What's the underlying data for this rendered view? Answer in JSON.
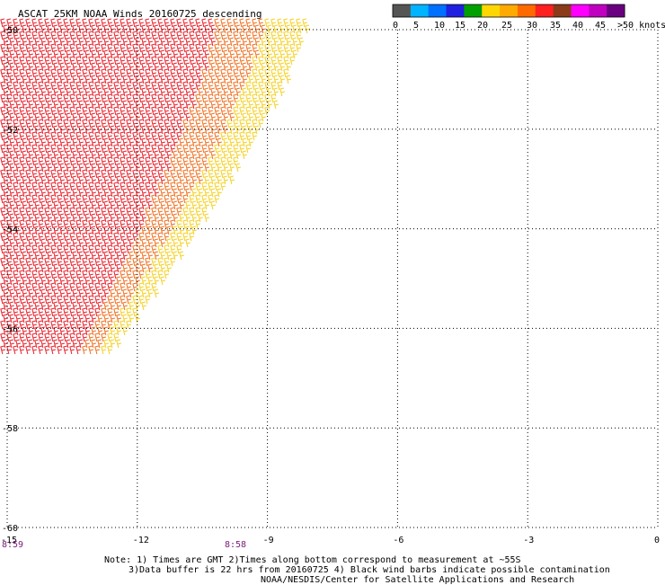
{
  "title": "ASCAT 25KM NOAA Winds 20160725 descending",
  "legend": {
    "colors": [
      "#555555",
      "#00b4ff",
      "#0070ff",
      "#2020e0",
      "#00a000",
      "#ffd700",
      "#ffaa00",
      "#ff6a00",
      "#ff2020",
      "#8b3a1a",
      "#ff00ff",
      "#c000c0",
      "#6a0080"
    ],
    "labels": [
      "0",
      "5",
      "10",
      "15",
      "20",
      "25",
      "30",
      "35",
      "40",
      "45",
      ">50 knots"
    ]
  },
  "axes": {
    "x_ticks": [
      "-15",
      "-12",
      "-9",
      "-6",
      "-3",
      "0"
    ],
    "y_ticks": [
      "-50",
      "-52",
      "-54",
      "-56",
      "-58",
      "-60"
    ]
  },
  "times": [
    "8:59",
    "8:58"
  ],
  "notes": {
    "line1": "Note: 1) Times are GMT 2)Times along bottom correspond to measurement at ~55S",
    "line2": "3)Data buffer is 22 hrs from 20160725 4) Black wind barbs indicate possible contamination",
    "line3": "NOAA/NESDIS/Center for Satellite Applications and Research"
  },
  "barb_colors": {
    "red": "#e8202a",
    "orange": "#f07020",
    "yellow": "#f5d020",
    "brown": "#b06030"
  }
}
